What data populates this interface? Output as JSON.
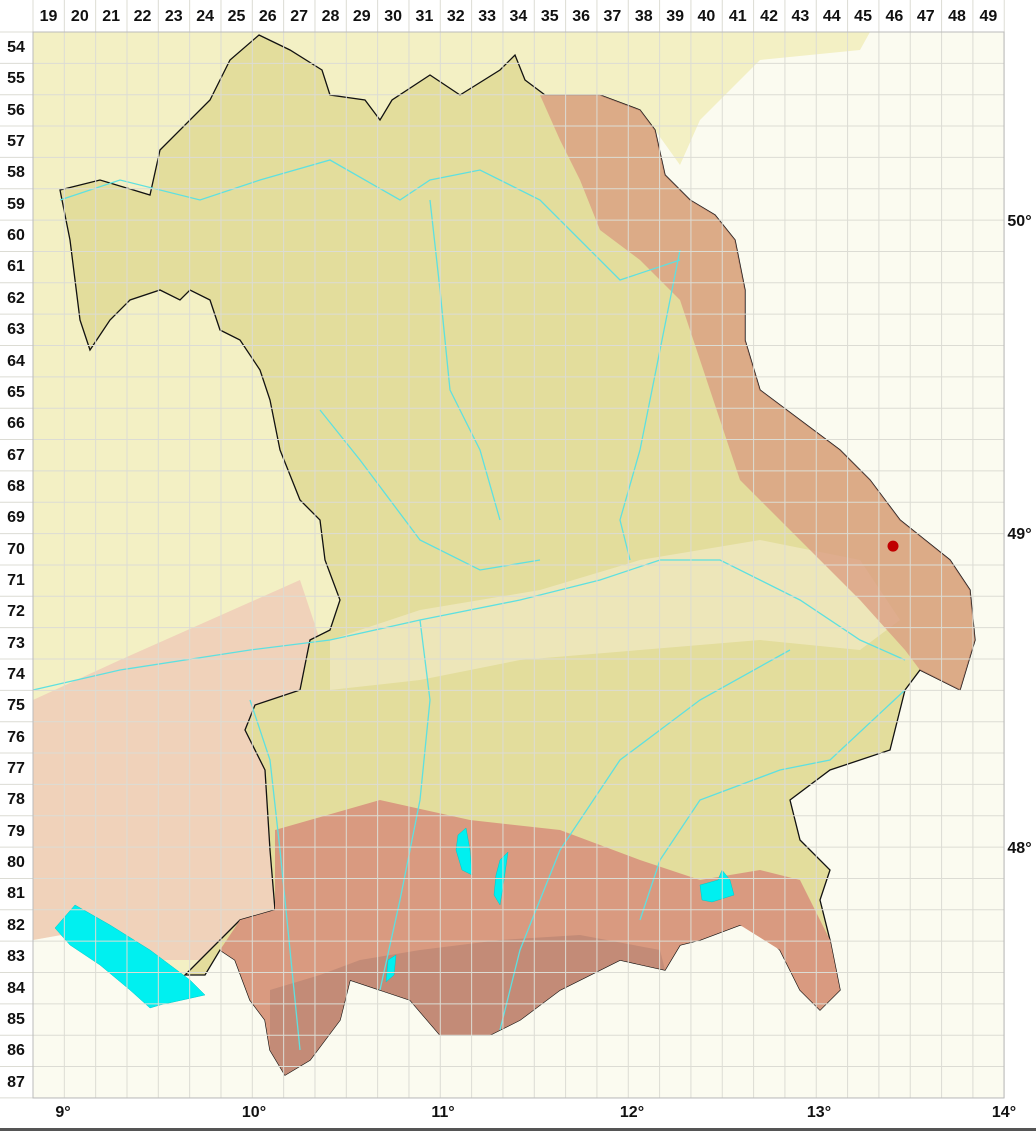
{
  "grid": {
    "columns": [
      "19",
      "20",
      "21",
      "22",
      "23",
      "24",
      "25",
      "26",
      "27",
      "28",
      "29",
      "30",
      "31",
      "32",
      "33",
      "34",
      "35",
      "36",
      "37",
      "38",
      "39",
      "40",
      "41",
      "42",
      "43",
      "44",
      "45",
      "46",
      "47",
      "48",
      "49"
    ],
    "rows": [
      "54",
      "55",
      "56",
      "57",
      "58",
      "59",
      "60",
      "61",
      "62",
      "63",
      "64",
      "65",
      "66",
      "67",
      "68",
      "69",
      "70",
      "71",
      "72",
      "73",
      "74",
      "75",
      "76",
      "77",
      "78",
      "79",
      "80",
      "81",
      "82",
      "83",
      "84",
      "85",
      "86",
      "87"
    ]
  },
  "axes": {
    "longitude_labels": [
      "9°",
      "10°",
      "11°",
      "12°",
      "13°",
      "14°"
    ],
    "latitude_labels": [
      "50°",
      "49°",
      "48°"
    ]
  },
  "occurrence": {
    "column": "46",
    "row": "70",
    "color": "#c00000"
  },
  "colors": {
    "background": "#fbfbf0",
    "lowland": "#f3f0c4",
    "bavaria_terrain": "#e3dd9c",
    "upland": "#dcc48e",
    "mountain": "#d99a80",
    "west_hills": "#efcdb8",
    "water": "#00f0f0",
    "river": "#5ee0e0",
    "border": "#111111",
    "gridline": "#e4e4dc"
  }
}
